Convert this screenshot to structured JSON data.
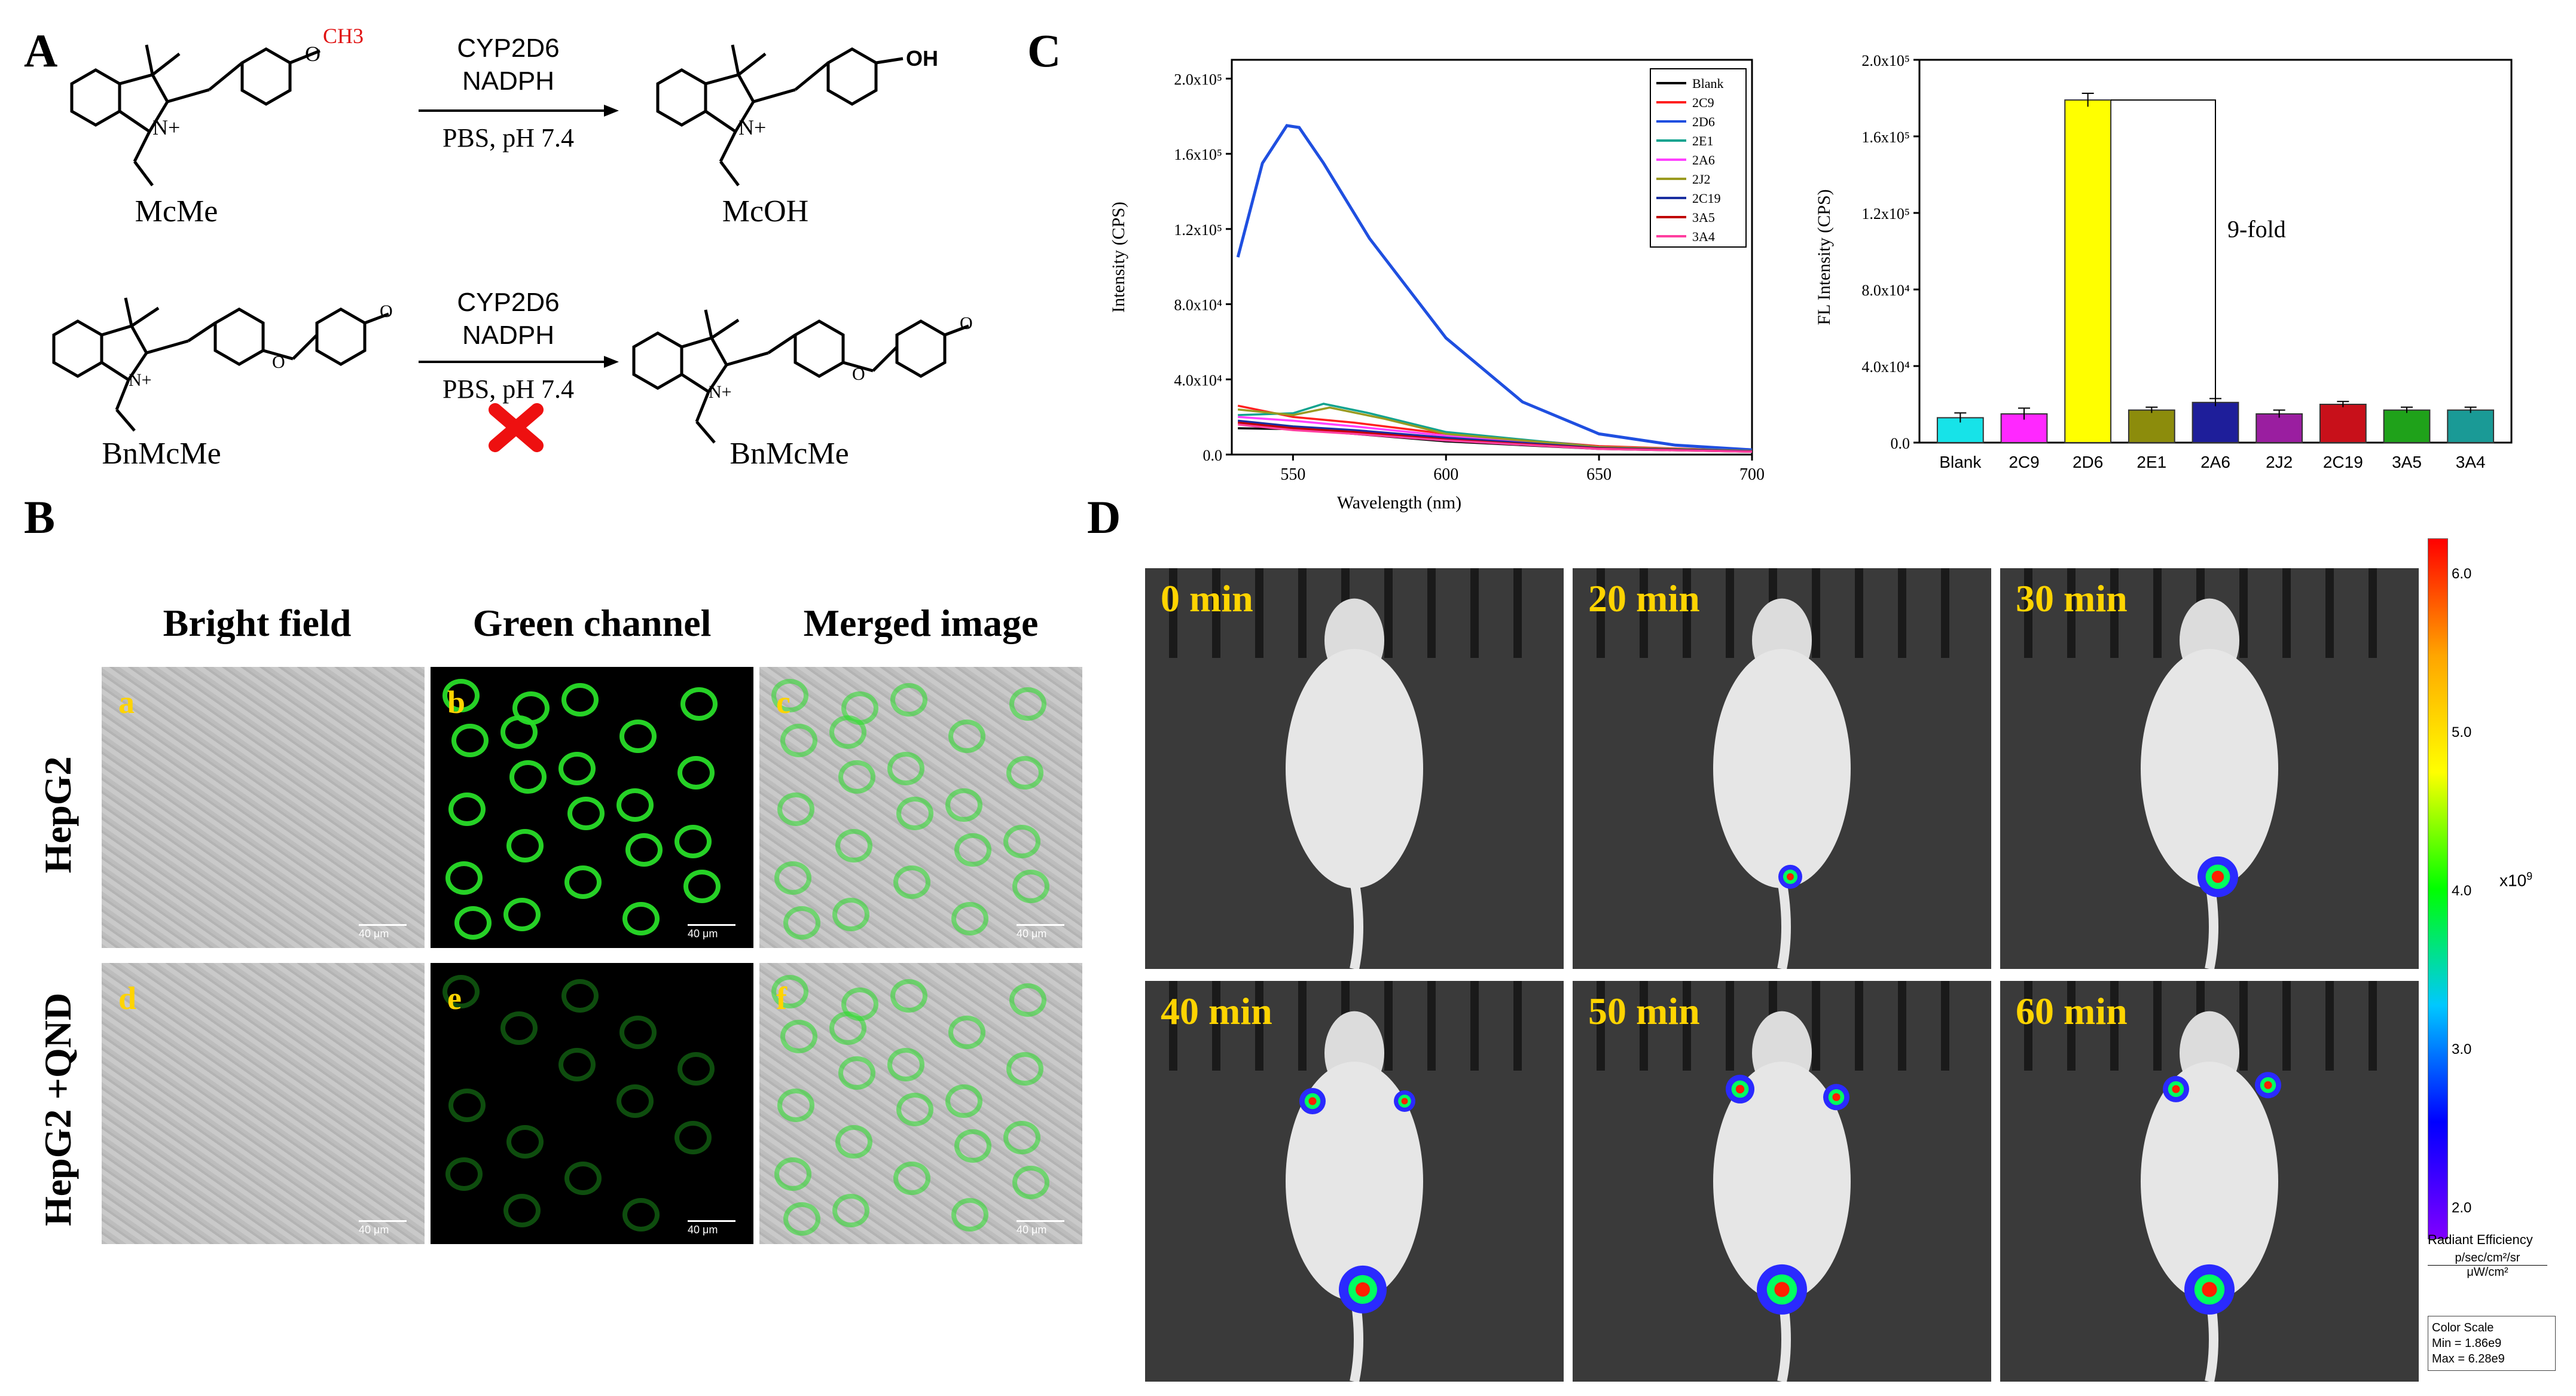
{
  "panels": {
    "A": "A",
    "B": "B",
    "C": "C",
    "D": "D"
  },
  "schemeA": {
    "row1": {
      "left_name": "McMe",
      "right_name": "McOH",
      "reagent1": "CYP2D6",
      "reagent2": "NADPH",
      "condition": "PBS, pH 7.4",
      "group_left": "CH3",
      "group_right": "OH"
    },
    "row2": {
      "left_name": "BnMcMe",
      "right_name": "BnMcMe",
      "reagent1": "CYP2D6",
      "reagent2": "NADPH",
      "condition": "PBS, pH 7.4"
    }
  },
  "panelB": {
    "columns": [
      "Bright field",
      "Green channel",
      "Merged image"
    ],
    "rows": [
      "HepG2",
      "HepG2 +QND"
    ],
    "sublabels": [
      "a",
      "b",
      "c",
      "d",
      "e",
      "f"
    ],
    "scale": "40 μm"
  },
  "panelD": {
    "times": [
      "0 min",
      "20 min",
      "30 min",
      "40 min",
      "50 min",
      "60 min"
    ],
    "colorbar": {
      "ticks": [
        "6.0",
        "5.0",
        "4.0",
        "3.0",
        "2.0"
      ],
      "multiplier": "x10",
      "exponent": "9",
      "title": "Radiant Efficiency",
      "unit_num": "p/sec/cm²/sr",
      "unit_den": "μW/cm²",
      "scale_title": "Color Scale",
      "min": "Min = 1.86e9",
      "max": "Max = 6.28e9",
      "colors": [
        "#ff0000",
        "#ffa500",
        "#ffff00",
        "#00ff00",
        "#00c8ff",
        "#0000ff",
        "#8000ff"
      ]
    }
  },
  "chart_data": [
    {
      "type": "line",
      "xlabel": "Wavelength (nm)",
      "ylabel": "Intensity (CPS)",
      "xlim": [
        530,
        700
      ],
      "ylim": [
        0,
        210000
      ],
      "xticks": [
        "550",
        "600",
        "650",
        "700"
      ],
      "yticks": [
        "0.0",
        "4.0x10⁴",
        "8.0x10⁴",
        "1.2x10⁵",
        "1.6x10⁵",
        "2.0x10⁵"
      ],
      "legend_position": "top-right",
      "series": [
        {
          "name": "Blank",
          "color": "#000000",
          "x": [
            532,
            550,
            570,
            600,
            650,
            700
          ],
          "y": [
            14000,
            13500,
            11000,
            7000,
            3000,
            1500
          ]
        },
        {
          "name": "2C9",
          "color": "#ff2020",
          "x": [
            532,
            550,
            570,
            600,
            650,
            700
          ],
          "y": [
            26000,
            20000,
            17000,
            11000,
            4500,
            2000
          ]
        },
        {
          "name": "2D6",
          "color": "#1f4fe0",
          "x": [
            532,
            540,
            548,
            552,
            560,
            575,
            600,
            625,
            650,
            675,
            700
          ],
          "y": [
            105000,
            155000,
            175000,
            174000,
            155000,
            115000,
            62000,
            28000,
            11000,
            5000,
            2500
          ]
        },
        {
          "name": "2E1",
          "color": "#11a38f",
          "x": [
            532,
            550,
            560,
            575,
            600,
            650,
            700
          ],
          "y": [
            21000,
            22000,
            27000,
            22000,
            12000,
            4000,
            2000
          ]
        },
        {
          "name": "2A6",
          "color": "#ff40ff",
          "x": [
            532,
            550,
            570,
            600,
            650,
            700
          ],
          "y": [
            20000,
            18000,
            15000,
            10000,
            4000,
            2000
          ]
        },
        {
          "name": "2J2",
          "color": "#9a9a20",
          "x": [
            532,
            550,
            562,
            580,
            600,
            650,
            700
          ],
          "y": [
            24000,
            21000,
            25000,
            19000,
            11000,
            4000,
            2000
          ]
        },
        {
          "name": "2C19",
          "color": "#1a2fa0",
          "x": [
            532,
            550,
            570,
            600,
            650,
            700
          ],
          "y": [
            18000,
            15000,
            13000,
            9000,
            3500,
            1800
          ]
        },
        {
          "name": "3A5",
          "color": "#c00000",
          "x": [
            532,
            550,
            570,
            600,
            650,
            700
          ],
          "y": [
            17000,
            14000,
            12000,
            8000,
            3200,
            1600
          ]
        },
        {
          "name": "3A4",
          "color": "#ff3fa0",
          "x": [
            532,
            550,
            570,
            600,
            650,
            700
          ],
          "y": [
            16000,
            13000,
            11000,
            7500,
            3000,
            1500
          ]
        }
      ]
    },
    {
      "type": "bar",
      "ylabel": "FL Intensity (CPS)",
      "ylim": [
        0,
        200000
      ],
      "yticks": [
        "0.0",
        "4.0x10⁴",
        "8.0x10⁴",
        "1.2x10⁵",
        "1.6x10⁵",
        "2.0x10⁵"
      ],
      "categories": [
        "Blank",
        "2C9",
        "2D6",
        "2E1",
        "2A6",
        "2J2",
        "2C19",
        "3A5",
        "3A4"
      ],
      "values": [
        13000,
        15000,
        179000,
        17000,
        21000,
        15000,
        20000,
        17000,
        17000
      ],
      "errors": [
        2500,
        3000,
        3500,
        1500,
        2000,
        2000,
        1500,
        1500,
        1500
      ],
      "colors": [
        "#17e3e8",
        "#ff28ff",
        "#ffff00",
        "#8c8c0c",
        "#1e1e9a",
        "#9a1ea0",
        "#c8101a",
        "#1fa21a",
        "#1a9a96"
      ],
      "annotation": "9-fold"
    }
  ]
}
